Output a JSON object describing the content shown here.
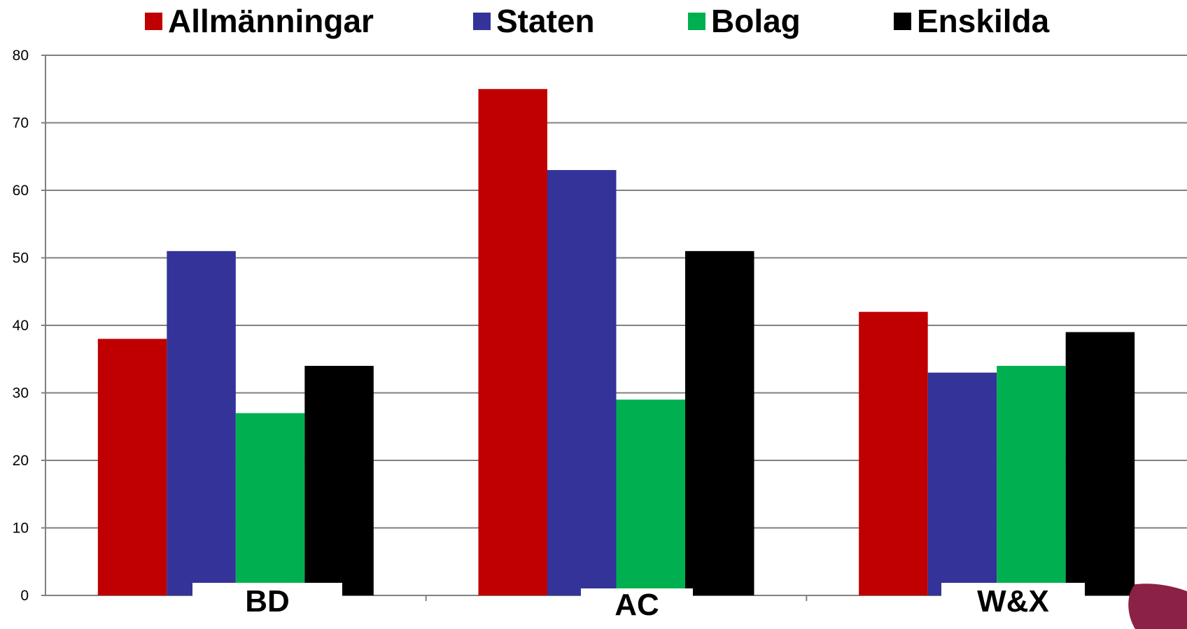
{
  "chart_data": {
    "type": "bar",
    "categories": [
      "BD",
      "AC",
      "W&X"
    ],
    "series": [
      {
        "name": "Allmänningar",
        "color": "#c00000",
        "values": [
          38,
          75,
          42
        ]
      },
      {
        "name": "Staten",
        "color": "#333399",
        "values": [
          51,
          63,
          33
        ]
      },
      {
        "name": "Bolag",
        "color": "#00b050",
        "values": [
          27,
          29,
          34
        ]
      },
      {
        "name": "Enskilda",
        "color": "#000000",
        "values": [
          34,
          51,
          39
        ]
      }
    ],
    "title": "",
    "xlabel": "",
    "ylabel": "",
    "ylim": [
      0,
      80
    ],
    "yticks": [
      0,
      10,
      20,
      30,
      40,
      50,
      60,
      70,
      80
    ],
    "grid": true,
    "legend_position": "top"
  }
}
